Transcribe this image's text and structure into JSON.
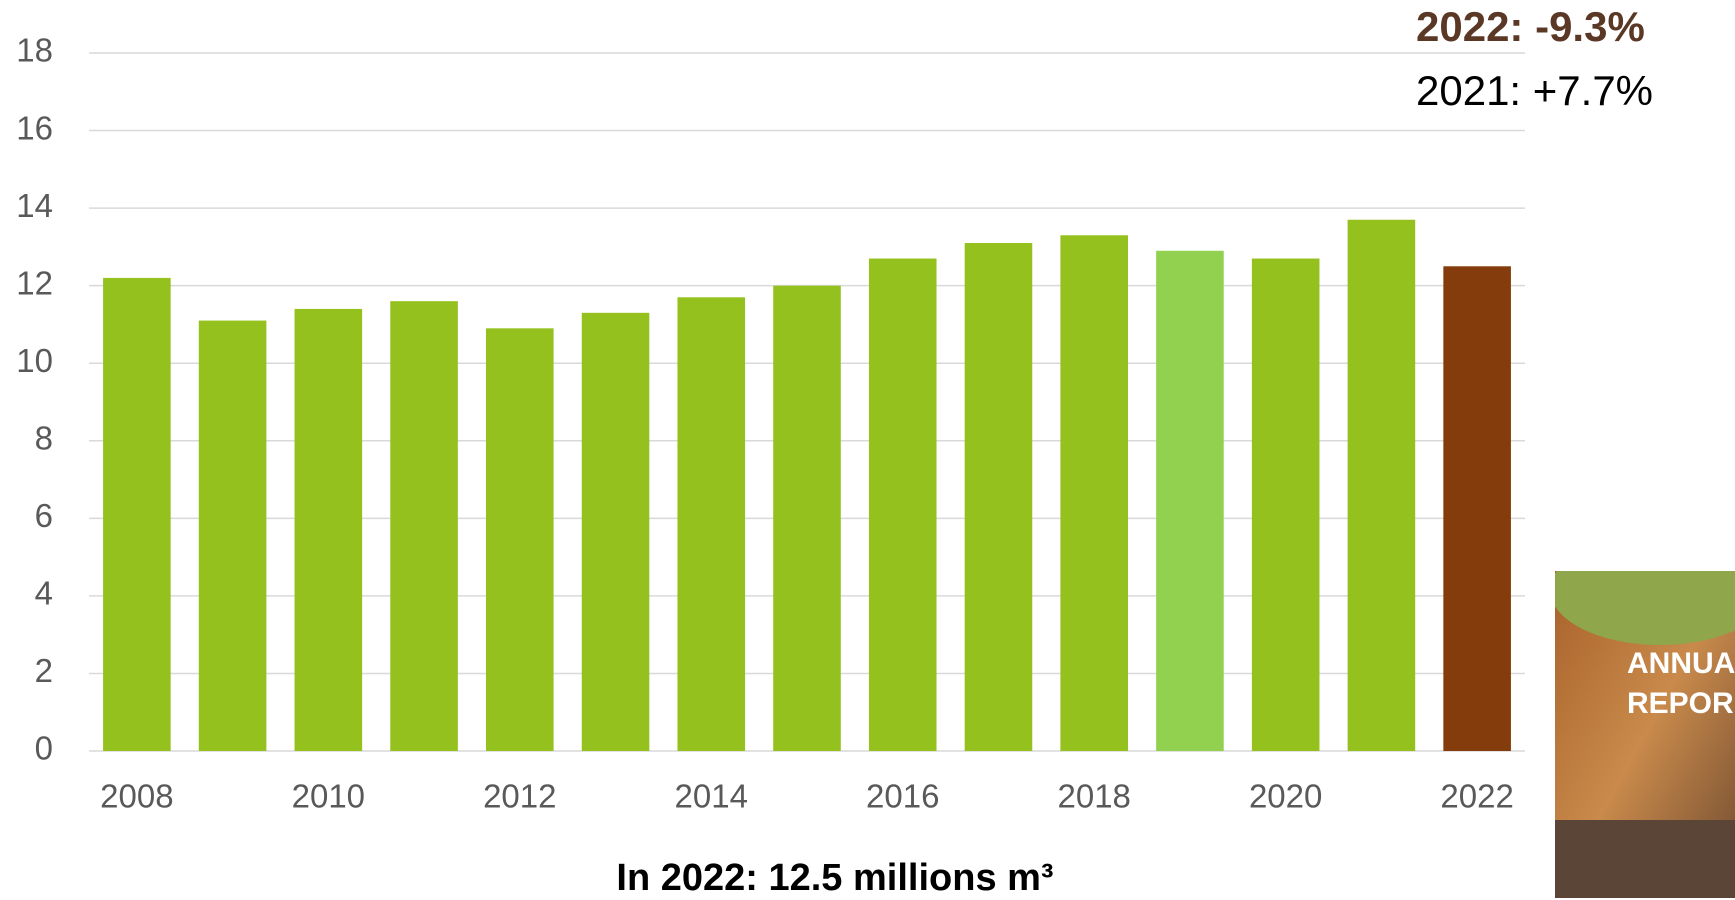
{
  "chart_data": {
    "type": "bar",
    "categories": [
      "2008",
      null,
      "2010",
      null,
      "2012",
      null,
      "2014",
      null,
      "2016",
      null,
      "2018",
      null,
      "2020",
      null,
      "2022"
    ],
    "values": [
      12.2,
      11.1,
      11.4,
      11.6,
      10.9,
      11.3,
      11.7,
      12.0,
      12.7,
      13.1,
      13.3,
      12.9,
      12.7,
      13.7,
      12.5
    ],
    "colors": [
      "#95c11f",
      "#95c11f",
      "#95c11f",
      "#95c11f",
      "#95c11f",
      "#95c11f",
      "#95c11f",
      "#95c11f",
      "#95c11f",
      "#95c11f",
      "#95c11f",
      "#92d050",
      "#95c11f",
      "#95c11f",
      "#843c0c"
    ],
    "ylim": [
      0,
      18
    ],
    "yticks": [
      0,
      2,
      4,
      6,
      8,
      10,
      12,
      14,
      16,
      18
    ],
    "grid": true,
    "x_label": "In 2022: 12.5 millions m³",
    "annotations": [
      "2022: -9.3%",
      "2021: +7.7%"
    ],
    "thumbnail_text": [
      "ANNUA",
      "REPOR"
    ]
  }
}
